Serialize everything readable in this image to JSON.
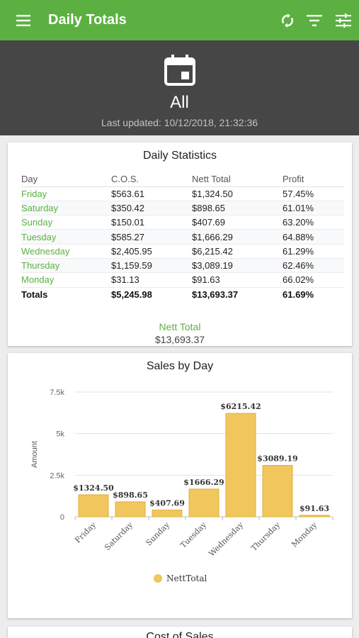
{
  "appbar": {
    "title": "Daily Totals",
    "icons": [
      "menu-icon",
      "refresh-icon",
      "filter-icon",
      "tune-icon"
    ]
  },
  "header": {
    "icon": "calendar-icon",
    "period": "All",
    "last_updated": "Last updated: 10/12/2018, 21:32:36"
  },
  "daily_statistics": {
    "title": "Daily Statistics",
    "columns": [
      "Day",
      "C.O.S.",
      "Nett Total",
      "Profit"
    ],
    "rows": [
      {
        "day": "Friday",
        "cos": "$563.61",
        "nett": "$1,324.50",
        "profit": "57.45%"
      },
      {
        "day": "Saturday",
        "cos": "$350.42",
        "nett": "$898.65",
        "profit": "61.01%"
      },
      {
        "day": "Sunday",
        "cos": "$150.01",
        "nett": "$407.69",
        "profit": "63.20%"
      },
      {
        "day": "Tuesday",
        "cos": "$585.27",
        "nett": "$1,666.29",
        "profit": "64.88%"
      },
      {
        "day": "Wednesday",
        "cos": "$2,405.95",
        "nett": "$6,215.42",
        "profit": "61.29%"
      },
      {
        "day": "Thursday",
        "cos": "$1,159.59",
        "nett": "$3,089.19",
        "profit": "62.46%"
      },
      {
        "day": "Monday",
        "cos": "$31.13",
        "nett": "$91.63",
        "profit": "66.02%"
      }
    ],
    "totals": {
      "day": "Totals",
      "cos": "$5,245.98",
      "nett": "$13,693.37",
      "profit": "61.69%"
    },
    "nett_total_label": "Nett Total",
    "nett_total_value": "$13,693.37"
  },
  "sales_by_day": {
    "title": "Sales by Day"
  },
  "cost_of_sales": {
    "title": "Cost of Sales"
  },
  "colors": {
    "appbar": "#5cb042",
    "header": "#464646",
    "accent_green": "#5cb042",
    "bar": "#f0c65d",
    "bar_stroke": "#e0b040"
  },
  "chart_data": {
    "type": "bar",
    "title": "Sales by Day",
    "ylabel": "Amount",
    "xlabel": "",
    "categories": [
      "Friday",
      "Saturday",
      "Sunday",
      "Tuesday",
      "Wednesday",
      "Thursday",
      "Monday"
    ],
    "series": [
      {
        "name": "NettTotal",
        "values": [
          1324.5,
          898.65,
          407.69,
          1666.29,
          6215.42,
          3089.19,
          91.63
        ]
      }
    ],
    "data_labels": [
      "$1324.50",
      "$898.65",
      "$407.69",
      "$1666.29",
      "$6215.42",
      "$3089.19",
      "$91.63"
    ],
    "yticks": [
      0,
      2500,
      5000,
      7500
    ],
    "ytick_labels": [
      "0",
      "2.5k",
      "5k",
      "7.5k"
    ],
    "ylim": [
      0,
      7500
    ],
    "grid": true,
    "legend": "bottom-center"
  }
}
